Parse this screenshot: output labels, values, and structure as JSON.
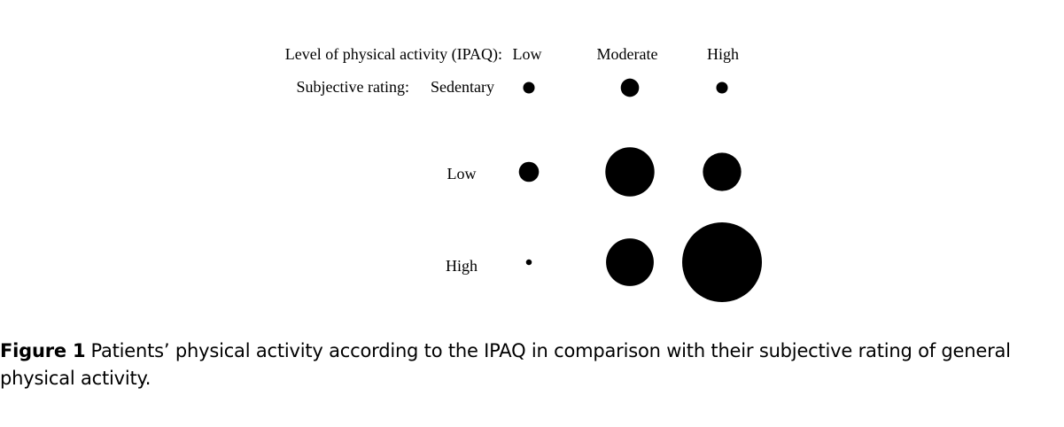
{
  "chart_data": {
    "type": "bubble",
    "x_header": "Level of physical activity (IPAQ):",
    "y_header": "Subjective rating:",
    "x_categories": [
      "Low",
      "Moderate",
      "High"
    ],
    "y_categories": [
      "Sedentary",
      "Low",
      "High"
    ],
    "values": [
      [
        4,
        10,
        4
      ],
      [
        12,
        72,
        44
      ],
      [
        1,
        68,
        190
      ]
    ],
    "marker_color": "#000000"
  },
  "caption": {
    "label": "Figure 1",
    "text": "Patients’ physical activity according to the IPAQ in comparison with their subjective rating of general physical activity."
  }
}
